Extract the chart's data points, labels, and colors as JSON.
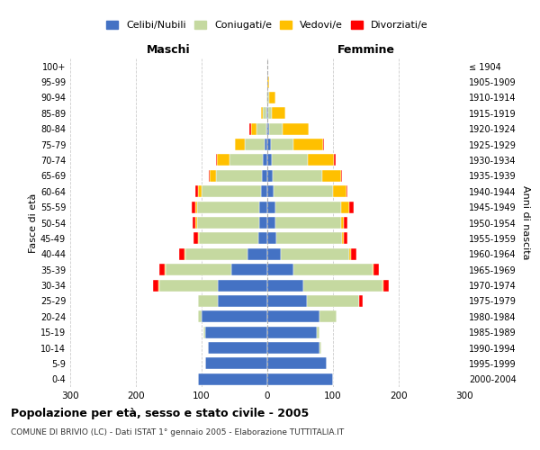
{
  "age_groups": [
    "0-4",
    "5-9",
    "10-14",
    "15-19",
    "20-24",
    "25-29",
    "30-34",
    "35-39",
    "40-44",
    "45-49",
    "50-54",
    "55-59",
    "60-64",
    "65-69",
    "70-74",
    "75-79",
    "80-84",
    "85-89",
    "90-94",
    "95-99",
    "100+"
  ],
  "birth_years": [
    "2000-2004",
    "1995-1999",
    "1990-1994",
    "1985-1989",
    "1980-1984",
    "1975-1979",
    "1970-1974",
    "1965-1969",
    "1960-1964",
    "1955-1959",
    "1950-1954",
    "1945-1949",
    "1940-1944",
    "1935-1939",
    "1930-1934",
    "1925-1929",
    "1920-1924",
    "1915-1919",
    "1910-1914",
    "1905-1909",
    "≤ 1904"
  ],
  "maschi_celibi": [
    105,
    95,
    90,
    95,
    100,
    75,
    75,
    55,
    30,
    14,
    12,
    12,
    10,
    8,
    7,
    4,
    2,
    2,
    0,
    0,
    0
  ],
  "maschi_coniugati": [
    0,
    0,
    0,
    2,
    5,
    30,
    90,
    100,
    95,
    90,
    95,
    95,
    90,
    70,
    50,
    30,
    15,
    5,
    2,
    0,
    0
  ],
  "maschi_vedovi": [
    0,
    0,
    0,
    0,
    0,
    0,
    1,
    1,
    1,
    1,
    2,
    3,
    5,
    10,
    20,
    15,
    8,
    3,
    0,
    0,
    0
  ],
  "maschi_divorziati": [
    0,
    0,
    0,
    0,
    0,
    0,
    8,
    8,
    8,
    7,
    5,
    5,
    5,
    1,
    1,
    1,
    2,
    0,
    0,
    0,
    0
  ],
  "femmine_celibi": [
    100,
    90,
    80,
    75,
    80,
    60,
    55,
    40,
    20,
    14,
    12,
    12,
    10,
    8,
    7,
    5,
    3,
    2,
    0,
    0,
    0
  ],
  "femmine_coniugati": [
    0,
    0,
    2,
    5,
    25,
    80,
    120,
    120,
    105,
    100,
    100,
    100,
    90,
    75,
    55,
    35,
    20,
    5,
    3,
    0,
    0
  ],
  "femmine_vedovi": [
    0,
    0,
    0,
    0,
    0,
    0,
    2,
    2,
    3,
    3,
    5,
    12,
    20,
    30,
    40,
    45,
    40,
    20,
    10,
    3,
    0
  ],
  "femmine_divorziati": [
    0,
    0,
    0,
    0,
    0,
    5,
    8,
    8,
    8,
    5,
    5,
    8,
    2,
    1,
    2,
    1,
    0,
    0,
    0,
    0,
    0
  ],
  "color_celibi": "#4472C4",
  "color_coniugati": "#c5d9a0",
  "color_vedovi": "#ffc000",
  "color_divorziati": "#ff0000",
  "title": "Popolazione per età, sesso e stato civile - 2005",
  "subtitle": "COMUNE DI BRIVIO (LC) - Dati ISTAT 1° gennaio 2005 - Elaborazione TUTTITALIA.IT",
  "ylabel_left": "Fasce di età",
  "ylabel_right": "Anni di nascita",
  "xlabel_maschi": "Maschi",
  "xlabel_femmine": "Femmine",
  "xlim": 300,
  "bg_color": "#ffffff",
  "grid_color": "#cccccc",
  "bar_height": 0.75
}
